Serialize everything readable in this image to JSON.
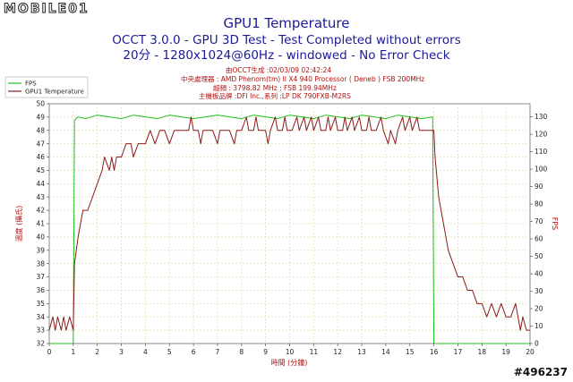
{
  "watermark": {
    "brand": "MOBILE01",
    "id": "#496237"
  },
  "chart_data": {
    "type": "line",
    "title": "GPU1 Temperature",
    "subtitle_lines": [
      "OCCT 3.0.0 - GPU 3D Test - Test Completed without errors",
      "20分 - 1280x1024@60Hz - windowed - No Error Check"
    ],
    "info_lines": [
      "由OCCT生成 :02/03/09 02:42:24",
      "中央處理器 : AMD Phenom(tm) II X4 940 Processor ( Deneb ) FSB 200MHz",
      "超頻 : 3798.82 MHz ; FSB 199.94MHz",
      "主機板品牌 :DFI Inc.,系列 :LP DK 790FXB-M2RS"
    ],
    "xlabel": "時間 (分鐘)",
    "ylabel_left": "溫度 (攝氏)",
    "ylabel_right": "FPS",
    "xlim": [
      0,
      20
    ],
    "ylim_left": [
      32,
      50
    ],
    "ylim_right": [
      0,
      137.5
    ],
    "x_ticks": [
      0,
      1,
      2,
      3,
      4,
      5,
      6,
      7,
      8,
      9,
      10,
      11,
      12,
      13,
      14,
      15,
      16,
      17,
      18,
      19,
      20
    ],
    "y_ticks_left": [
      32,
      33,
      34,
      35,
      36,
      37,
      38,
      39,
      40,
      41,
      42,
      43,
      44,
      45,
      46,
      47,
      48,
      49,
      50
    ],
    "y_ticks_right": [
      0,
      10,
      20,
      30,
      40,
      50,
      60,
      70,
      80,
      90,
      100,
      110,
      120,
      130
    ],
    "grid": true,
    "legend_position": "top-left",
    "series": [
      {
        "name": "FPS",
        "axis": "right",
        "color": "#20c020",
        "points": [
          [
            0,
            0
          ],
          [
            1.0,
            0
          ],
          [
            1.05,
            128
          ],
          [
            1.2,
            130
          ],
          [
            1.5,
            129
          ],
          [
            2,
            131
          ],
          [
            2.5,
            130
          ],
          [
            3,
            129
          ],
          [
            3.5,
            131
          ],
          [
            4,
            130
          ],
          [
            4.5,
            129
          ],
          [
            5,
            131
          ],
          [
            5.5,
            130
          ],
          [
            6,
            129
          ],
          [
            6.5,
            130
          ],
          [
            7,
            131
          ],
          [
            7.5,
            130
          ],
          [
            8,
            129
          ],
          [
            8.5,
            131
          ],
          [
            9,
            130
          ],
          [
            9.5,
            129
          ],
          [
            10,
            131
          ],
          [
            10.5,
            130
          ],
          [
            11,
            129
          ],
          [
            11.5,
            131
          ],
          [
            12,
            130
          ],
          [
            12.5,
            129
          ],
          [
            13,
            131
          ],
          [
            13.5,
            130
          ],
          [
            14,
            129
          ],
          [
            14.5,
            131
          ],
          [
            15,
            130
          ],
          [
            15.5,
            129
          ],
          [
            15.95,
            130
          ],
          [
            16.0,
            0
          ],
          [
            20,
            0
          ]
        ]
      },
      {
        "name": "GPU1 Temperature",
        "axis": "left",
        "color": "#8b1a1a",
        "points": [
          [
            0,
            33
          ],
          [
            0.15,
            34
          ],
          [
            0.25,
            33
          ],
          [
            0.35,
            34
          ],
          [
            0.5,
            33
          ],
          [
            0.6,
            34
          ],
          [
            0.7,
            33
          ],
          [
            0.85,
            34
          ],
          [
            1.0,
            33
          ],
          [
            1.05,
            38
          ],
          [
            1.2,
            40
          ],
          [
            1.4,
            42
          ],
          [
            1.6,
            42
          ],
          [
            1.8,
            43
          ],
          [
            2.0,
            44
          ],
          [
            2.2,
            45
          ],
          [
            2.3,
            46
          ],
          [
            2.5,
            45
          ],
          [
            2.6,
            46
          ],
          [
            2.7,
            45
          ],
          [
            2.8,
            46
          ],
          [
            3.0,
            46
          ],
          [
            3.2,
            47
          ],
          [
            3.4,
            47
          ],
          [
            3.5,
            46
          ],
          [
            3.7,
            47
          ],
          [
            4.0,
            47
          ],
          [
            4.2,
            48
          ],
          [
            4.4,
            47
          ],
          [
            4.6,
            48
          ],
          [
            4.8,
            48
          ],
          [
            5.0,
            47
          ],
          [
            5.2,
            48
          ],
          [
            5.5,
            48
          ],
          [
            5.8,
            48
          ],
          [
            5.9,
            49
          ],
          [
            6.0,
            48
          ],
          [
            6.2,
            48
          ],
          [
            6.3,
            47
          ],
          [
            6.4,
            48
          ],
          [
            6.6,
            48
          ],
          [
            6.8,
            48
          ],
          [
            7.0,
            47
          ],
          [
            7.1,
            48
          ],
          [
            7.3,
            48
          ],
          [
            7.5,
            48
          ],
          [
            7.7,
            47
          ],
          [
            7.8,
            48
          ],
          [
            8.0,
            48
          ],
          [
            8.2,
            49
          ],
          [
            8.3,
            48
          ],
          [
            8.5,
            48
          ],
          [
            8.6,
            49
          ],
          [
            8.7,
            48
          ],
          [
            9.0,
            48
          ],
          [
            9.1,
            47
          ],
          [
            9.2,
            48
          ],
          [
            9.4,
            49
          ],
          [
            9.5,
            48
          ],
          [
            9.7,
            48
          ],
          [
            9.8,
            49
          ],
          [
            9.9,
            48
          ],
          [
            10.1,
            48
          ],
          [
            10.3,
            49
          ],
          [
            10.4,
            48
          ],
          [
            10.6,
            49
          ],
          [
            10.7,
            48
          ],
          [
            10.9,
            49
          ],
          [
            11.0,
            48
          ],
          [
            11.2,
            49
          ],
          [
            11.3,
            48
          ],
          [
            11.5,
            48
          ],
          [
            11.6,
            49
          ],
          [
            11.7,
            48
          ],
          [
            11.9,
            49
          ],
          [
            12.0,
            48
          ],
          [
            12.2,
            48
          ],
          [
            12.3,
            49
          ],
          [
            12.4,
            48
          ],
          [
            12.6,
            49
          ],
          [
            12.7,
            48
          ],
          [
            12.9,
            49
          ],
          [
            13.0,
            48
          ],
          [
            13.2,
            48
          ],
          [
            13.3,
            49
          ],
          [
            13.4,
            48
          ],
          [
            13.6,
            48
          ],
          [
            13.8,
            49
          ],
          [
            13.9,
            48
          ],
          [
            14.1,
            47
          ],
          [
            14.2,
            48
          ],
          [
            14.4,
            47
          ],
          [
            14.5,
            48
          ],
          [
            14.7,
            49
          ],
          [
            14.8,
            48
          ],
          [
            15.0,
            49
          ],
          [
            15.1,
            48
          ],
          [
            15.3,
            49
          ],
          [
            15.4,
            48
          ],
          [
            15.6,
            48
          ],
          [
            15.8,
            48
          ],
          [
            16.0,
            48
          ],
          [
            16.05,
            46
          ],
          [
            16.2,
            43
          ],
          [
            16.4,
            41
          ],
          [
            16.6,
            39
          ],
          [
            16.8,
            38
          ],
          [
            17.0,
            37
          ],
          [
            17.2,
            37
          ],
          [
            17.4,
            36
          ],
          [
            17.6,
            36
          ],
          [
            17.8,
            35
          ],
          [
            18.0,
            35
          ],
          [
            18.2,
            34
          ],
          [
            18.4,
            35
          ],
          [
            18.6,
            34
          ],
          [
            18.8,
            35
          ],
          [
            19.0,
            34
          ],
          [
            19.2,
            34
          ],
          [
            19.4,
            35
          ],
          [
            19.5,
            34
          ],
          [
            19.6,
            33
          ],
          [
            19.7,
            34
          ],
          [
            19.85,
            33
          ],
          [
            20,
            33
          ]
        ]
      }
    ]
  }
}
